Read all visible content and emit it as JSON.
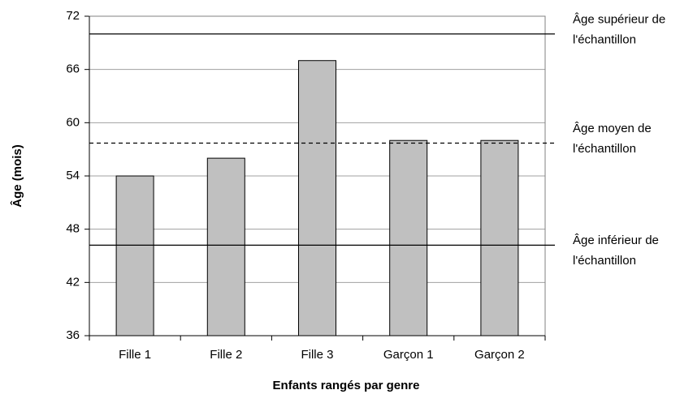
{
  "chart_data": {
    "type": "bar",
    "x_label": "Enfants rangés par genre",
    "y_label": "Âge (mois)",
    "categories": [
      "Fille 1",
      "Fille 2",
      "Fille 3",
      "Garçon 1",
      "Garçon 2"
    ],
    "values": [
      54,
      56,
      67,
      58,
      58
    ],
    "color": "#c0c0c0",
    "ylim": [
      36,
      72
    ],
    "yticks": [
      36,
      42,
      48,
      54,
      60,
      66,
      72
    ],
    "grid": true,
    "reference_lines": [
      {
        "value": 70,
        "style": "solid",
        "label": [
          "Âge supérieur de",
          "l'échantillon"
        ]
      },
      {
        "value": 57.7,
        "style": "dashed",
        "label": [
          "Âge moyen de",
          "l'échantillon"
        ]
      },
      {
        "value": 46.2,
        "style": "solid",
        "label": [
          "Âge inférieur de",
          "l'échantillon"
        ]
      }
    ]
  }
}
